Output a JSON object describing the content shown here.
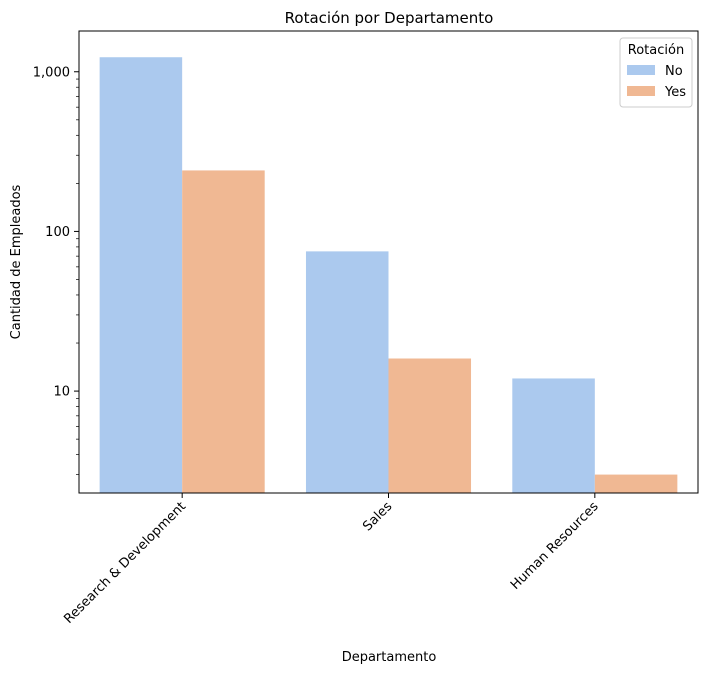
{
  "chart_data": {
    "type": "bar",
    "title": "Rotación por Departamento",
    "xlabel": "Departamento",
    "ylabel": "Cantidad de Empleados",
    "yscale": "log",
    "ylim": [
      2.3,
      1800
    ],
    "yticks": [
      {
        "value": 10,
        "label": "10"
      },
      {
        "value": 100,
        "label": "100"
      },
      {
        "value": 1000,
        "label": "1,000"
      }
    ],
    "categories": [
      "Research & Development",
      "Sales",
      "Human Resources"
    ],
    "series": [
      {
        "name": "No",
        "color": "#abc9ee",
        "values": [
          1233,
          75,
          12
        ]
      },
      {
        "name": "Yes",
        "color": "#f0b893",
        "values": [
          241,
          16,
          3
        ]
      }
    ],
    "legend": {
      "title": "Rotación",
      "placement": "top-right"
    },
    "grid": false,
    "xtick_rotation": 45
  }
}
